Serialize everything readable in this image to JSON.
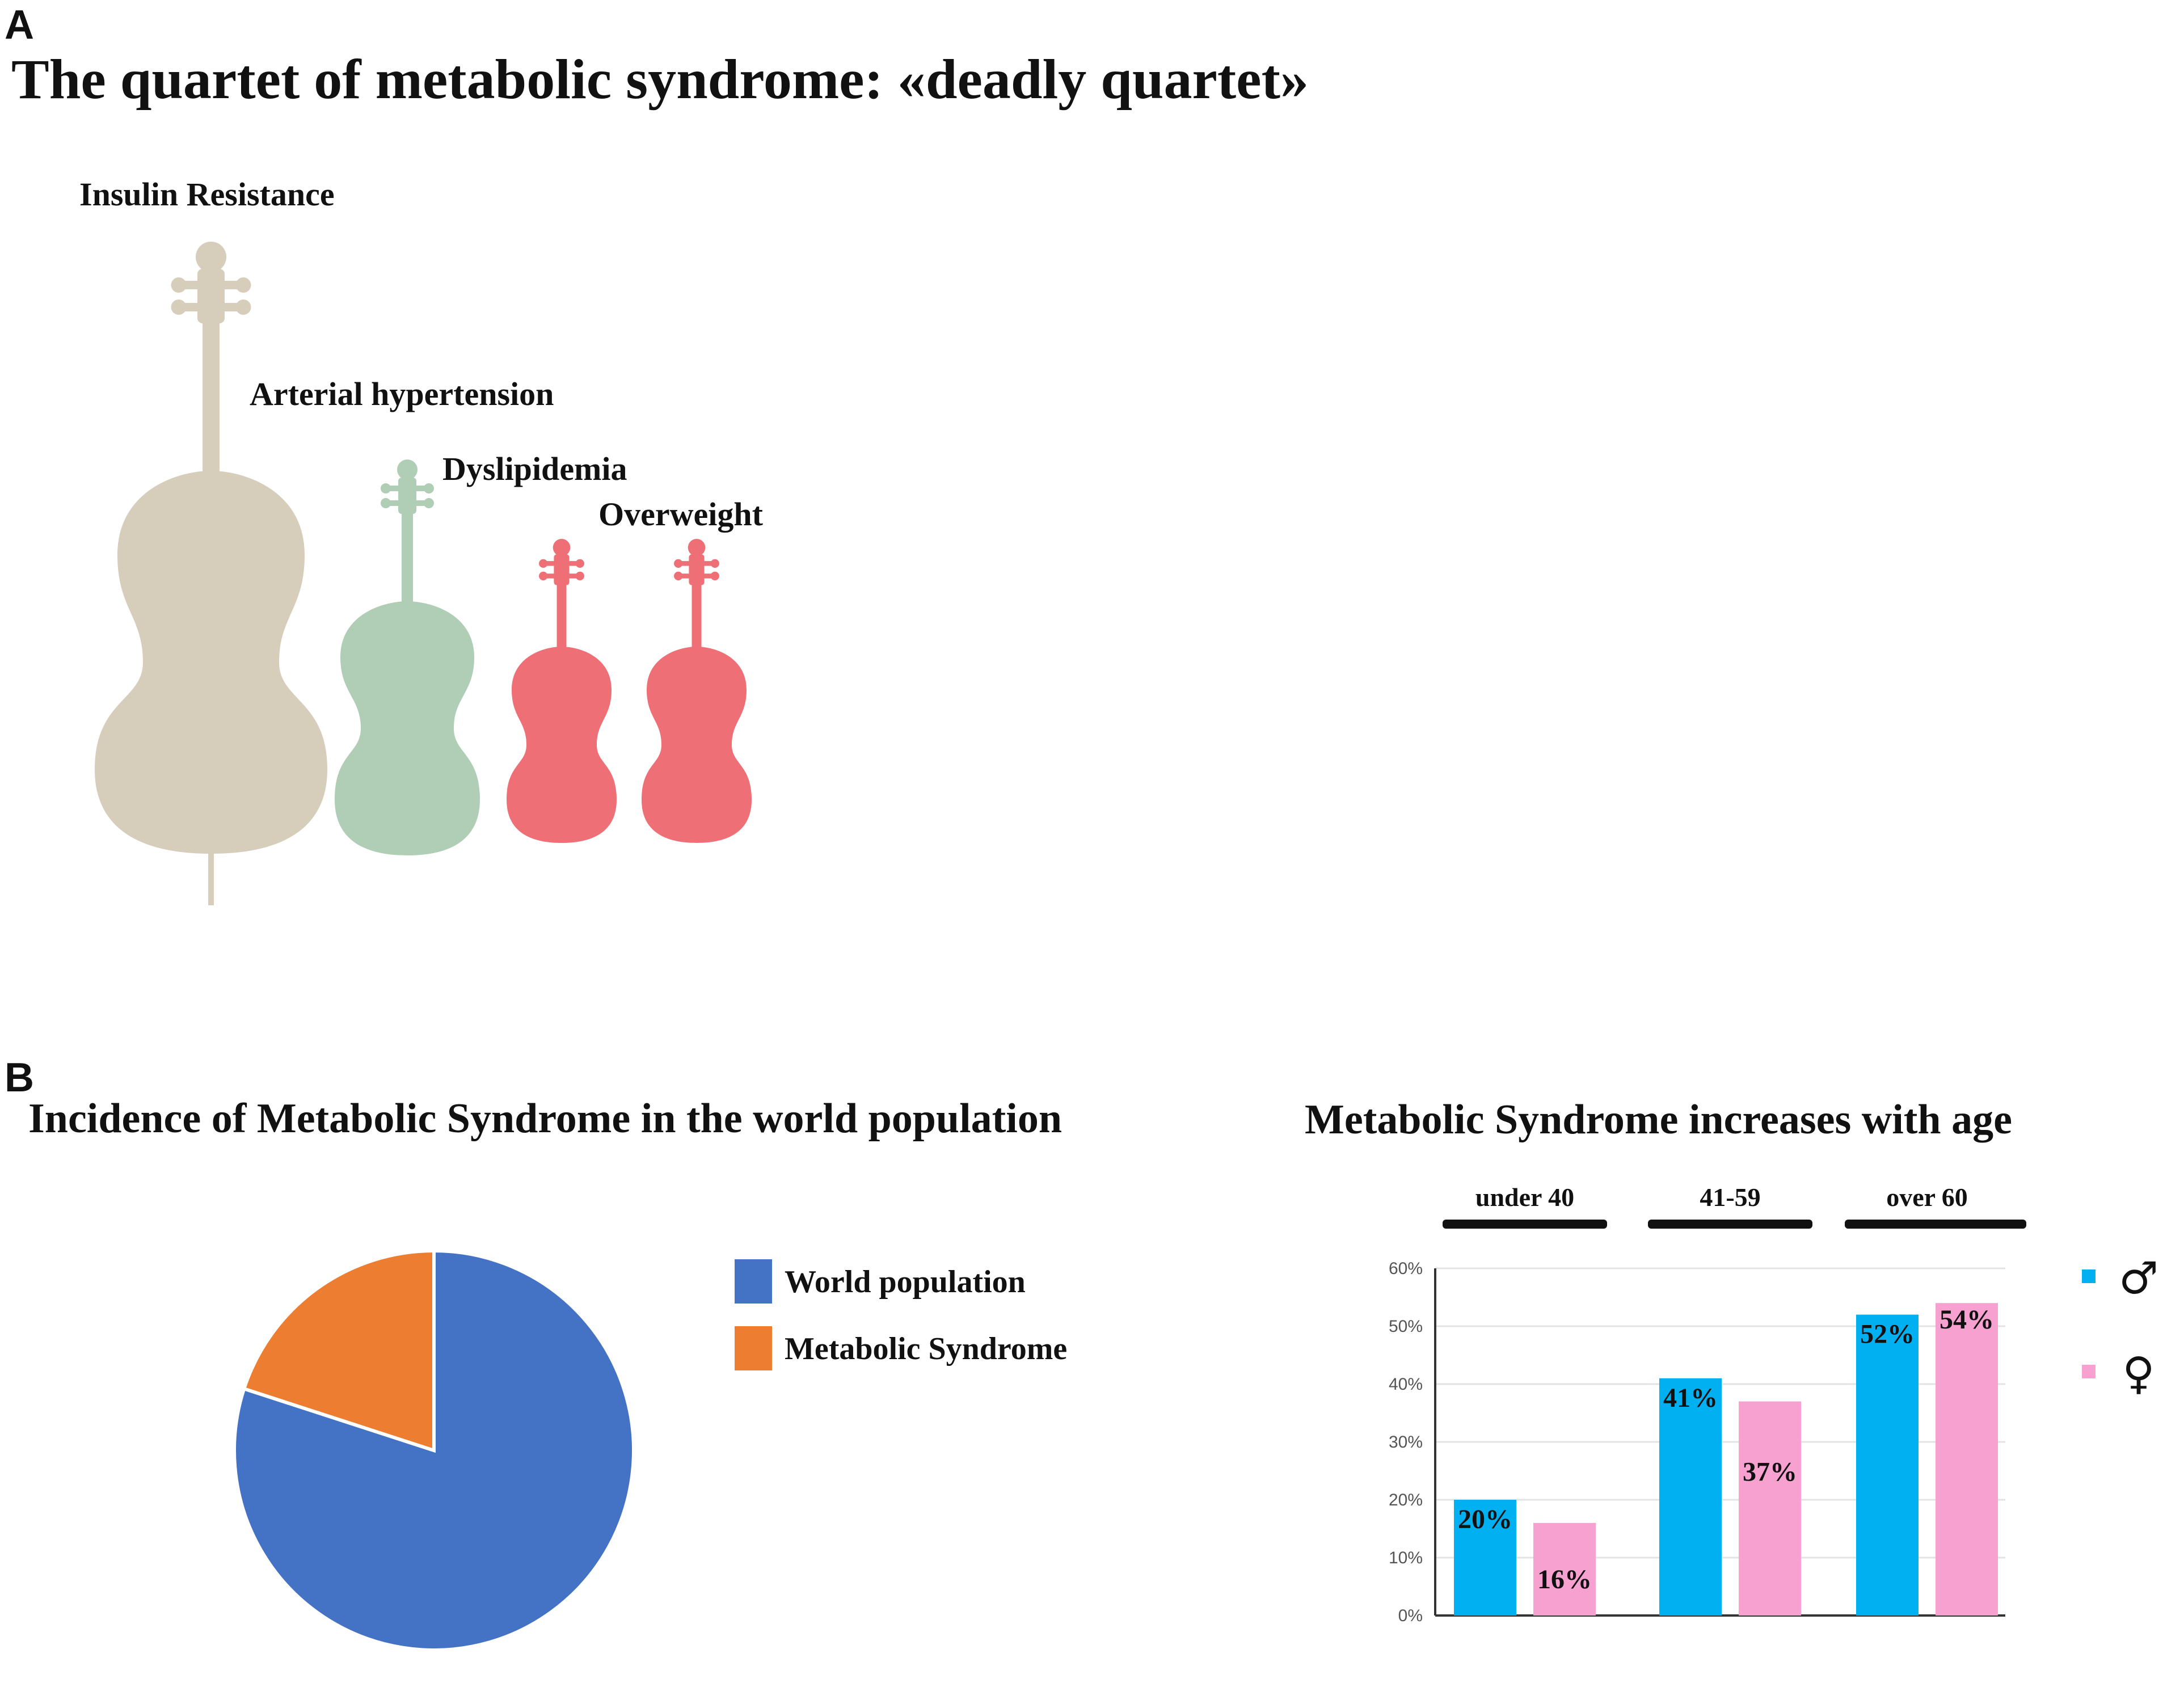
{
  "panel_a": {
    "letter": "A",
    "title": "The quartet of metabolic syndrome: «deadly quartet»",
    "instruments": [
      {
        "label": "Insulin Resistance",
        "instrument": "cello",
        "color": "#d6cdbb"
      },
      {
        "label": "Arterial hypertension",
        "instrument": "viola",
        "color": "#b0cdb6"
      },
      {
        "label": "Dyslipidemia",
        "instrument": "violin",
        "color": "#ee7076"
      },
      {
        "label": "Overweight",
        "instrument": "violin",
        "color": "#ee7076"
      }
    ]
  },
  "panel_b": {
    "letter": "B",
    "pie_title": "Incidence of Metabolic Syndrome in the world population",
    "bar_title": "Metabolic Syndrome increases with age"
  },
  "chart_data": [
    {
      "type": "pie",
      "title": "Incidence of Metabolic Syndrome in the world population",
      "categories": [
        "World population",
        "Metabolic Syndrome"
      ],
      "values": [
        80,
        20
      ],
      "colors": [
        "#4472c4",
        "#ed7d31"
      ],
      "legend": "right"
    },
    {
      "type": "bar",
      "title": "Metabolic Syndrome increases with age",
      "categories": [
        "under 40",
        "41-59",
        "over 60"
      ],
      "series": [
        {
          "name": "♂",
          "values": [
            20,
            41,
            52
          ],
          "labels": [
            "20%",
            "41%",
            "52%"
          ],
          "color": "#00b0f0"
        },
        {
          "name": "♀",
          "values": [
            16,
            37,
            54
          ],
          "labels": [
            "16%",
            "37%",
            "54%"
          ],
          "color": "#f7a1d0"
        }
      ],
      "ylim": [
        0,
        60
      ],
      "yticks": [
        "0%",
        "10%",
        "20%",
        "30%",
        "40%",
        "50%",
        "60%"
      ],
      "grid": true,
      "legend": "right"
    }
  ]
}
